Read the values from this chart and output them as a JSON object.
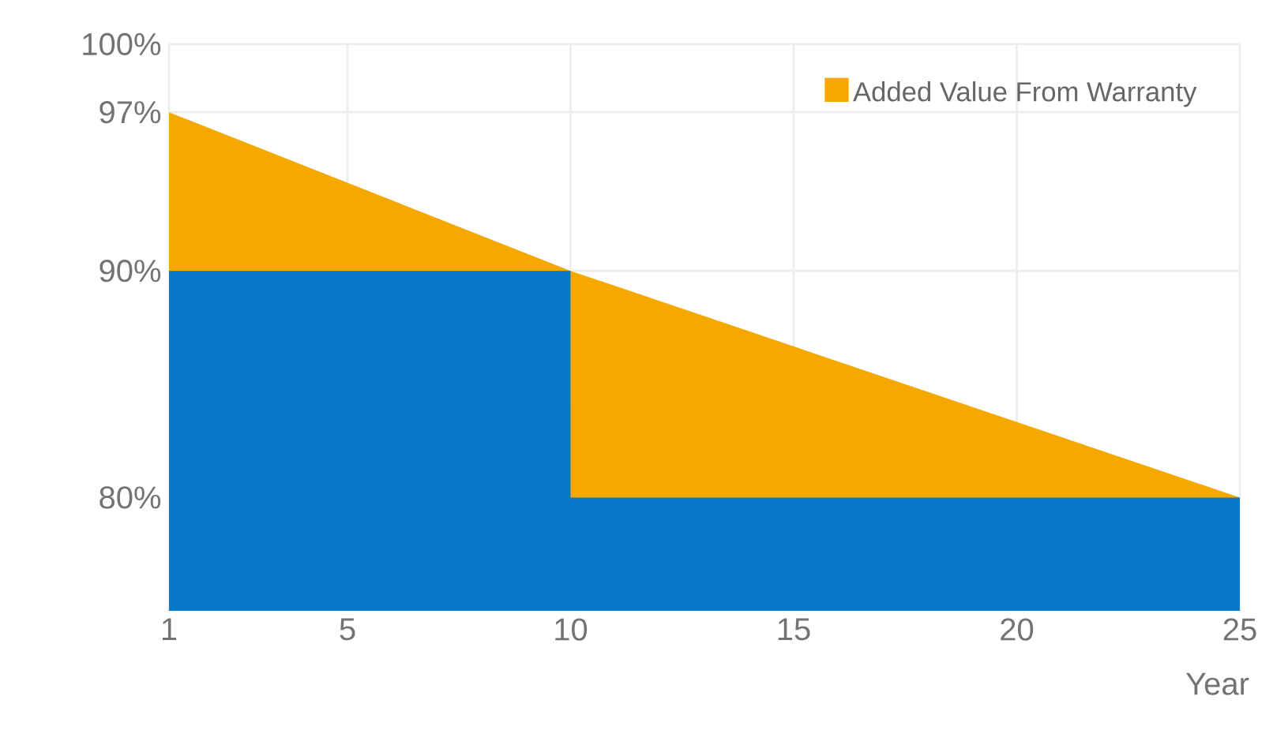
{
  "chart_data": {
    "type": "area",
    "xlabel": "Year",
    "series": [
      {
        "name": "Added Value From Warranty",
        "color": "#f5a800",
        "x": [
          1,
          10,
          25
        ],
        "values": [
          97,
          90,
          80
        ]
      },
      {
        "color": "#0a78c8",
        "x": [
          1,
          10,
          10,
          25
        ],
        "values": [
          90,
          90,
          80,
          80
        ]
      }
    ],
    "xlim": [
      1,
      25
    ],
    "xticks": [
      1,
      5,
      10,
      15,
      20,
      25
    ],
    "ylim": [
      75,
      100
    ],
    "yticks": [
      {
        "value": 80,
        "label": "80%"
      },
      {
        "value": 90,
        "label": "90%"
      },
      {
        "value": 97,
        "label": "97%"
      },
      {
        "value": 100,
        "label": "100%"
      }
    ],
    "grid": true,
    "legend": "top right"
  }
}
